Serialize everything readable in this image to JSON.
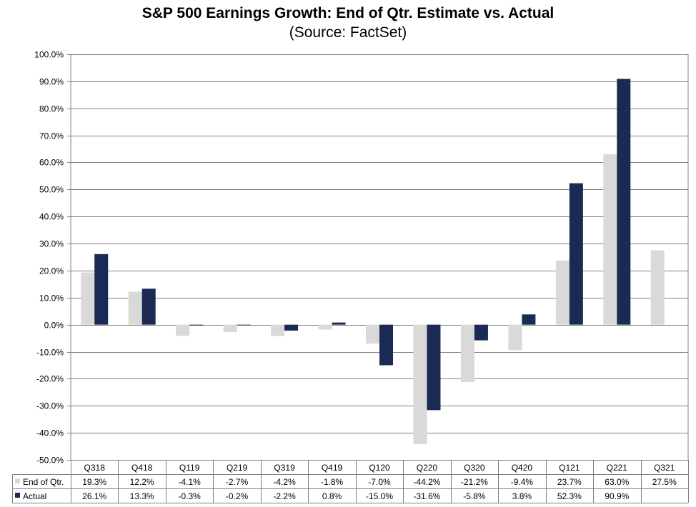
{
  "chart_data": {
    "type": "bar",
    "title": "S&P 500 Earnings Growth: End of Qtr. Estimate vs. Actual",
    "subtitle": "(Source: FactSet)",
    "categories": [
      "Q318",
      "Q418",
      "Q119",
      "Q219",
      "Q319",
      "Q419",
      "Q120",
      "Q220",
      "Q320",
      "Q420",
      "Q121",
      "Q221",
      "Q321"
    ],
    "series": [
      {
        "name": "End of Qtr.",
        "color": "#d9d9d9",
        "values": [
          19.3,
          12.2,
          -4.1,
          -2.7,
          -4.2,
          -1.8,
          -7.0,
          -44.2,
          -21.2,
          -9.4,
          23.7,
          63.0,
          27.5
        ],
        "labels": [
          "19.3%",
          "12.2%",
          "-4.1%",
          "-2.7%",
          "-4.2%",
          "-1.8%",
          "-7.0%",
          "-44.2%",
          "-21.2%",
          "-9.4%",
          "23.7%",
          "63.0%",
          "27.5%"
        ]
      },
      {
        "name": "Actual",
        "color": "#1b2a55",
        "values": [
          26.1,
          13.3,
          -0.3,
          -0.2,
          -2.2,
          0.8,
          -15.0,
          -31.6,
          -5.8,
          3.8,
          52.3,
          90.9,
          null
        ],
        "labels": [
          "26.1%",
          "13.3%",
          "-0.3%",
          "-0.2%",
          "-2.2%",
          "0.8%",
          "-15.0%",
          "-31.6%",
          "-5.8%",
          "3.8%",
          "52.3%",
          "90.9%",
          ""
        ]
      }
    ],
    "ylim": [
      -50,
      100
    ],
    "ytick_step": 10,
    "ytick_labels": [
      "-50.0%",
      "-40.0%",
      "-30.0%",
      "-20.0%",
      "-10.0%",
      "0.0%",
      "10.0%",
      "20.0%",
      "30.0%",
      "40.0%",
      "50.0%",
      "60.0%",
      "70.0%",
      "80.0%",
      "90.0%",
      "100.0%"
    ],
    "grid": true,
    "legend": "data-table"
  }
}
